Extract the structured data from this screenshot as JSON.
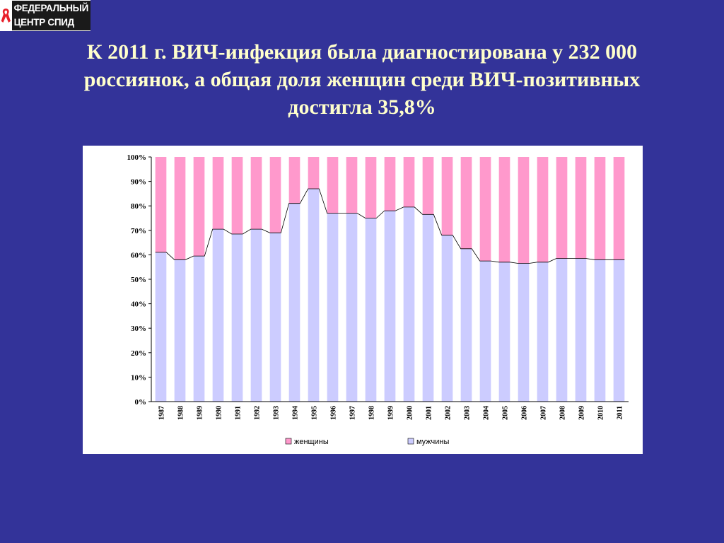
{
  "logo": {
    "line1": "ФЕДЕРАЛЬНЫЙ",
    "line2": "ЦЕНТР СПИД"
  },
  "title": {
    "line1": "К 2011 г.  ВИЧ-инфекция была диагностирована у 232 000",
    "line2": "россиянок, а общая доля женщин  среди ВИЧ-позитивных",
    "line3": "достигла 35,8%"
  },
  "colors": {
    "background": "#333399",
    "title": "#ffffcc",
    "women": "#ff99cc",
    "men": "#ccccff"
  },
  "chart_data": {
    "type": "bar",
    "stacked": "percent",
    "title": "",
    "xlabel": "",
    "ylabel": "",
    "ylim": [
      0,
      100
    ],
    "yticks": [
      "0%",
      "10%",
      "20%",
      "30%",
      "40%",
      "50%",
      "60%",
      "70%",
      "80%",
      "90%",
      "100%"
    ],
    "categories": [
      "1987",
      "1988",
      "1989",
      "1990",
      "1991",
      "1992",
      "1993",
      "1994",
      "1995",
      "1996",
      "1997",
      "1998",
      "1999",
      "2000",
      "2001",
      "2002",
      "2003",
      "2004",
      "2005",
      "2006",
      "2007",
      "2008",
      "2009",
      "2010",
      "2011"
    ],
    "series": [
      {
        "name": "мужчины",
        "color": "#ccccff",
        "values": [
          61,
          58,
          59.5,
          70.5,
          68.5,
          70.5,
          69,
          81,
          87,
          77,
          77,
          75,
          78,
          79.5,
          76.5,
          68,
          62.5,
          57.5,
          57,
          56.5,
          57,
          58.5,
          58.5,
          58,
          58
        ]
      },
      {
        "name": "женщины",
        "color": "#ff99cc",
        "values": [
          39,
          42,
          40.5,
          29.5,
          31.5,
          29.5,
          31,
          19,
          13,
          23,
          23,
          25,
          22,
          20.5,
          23.5,
          32,
          37.5,
          42.5,
          43,
          43.5,
          43,
          41.5,
          41.5,
          42,
          42
        ]
      }
    ],
    "legend": {
      "position": "bottom",
      "items": [
        {
          "label": "женщины",
          "color": "#ff99cc"
        },
        {
          "label": "мужчины",
          "color": "#ccccff"
        }
      ]
    },
    "grid": false
  }
}
